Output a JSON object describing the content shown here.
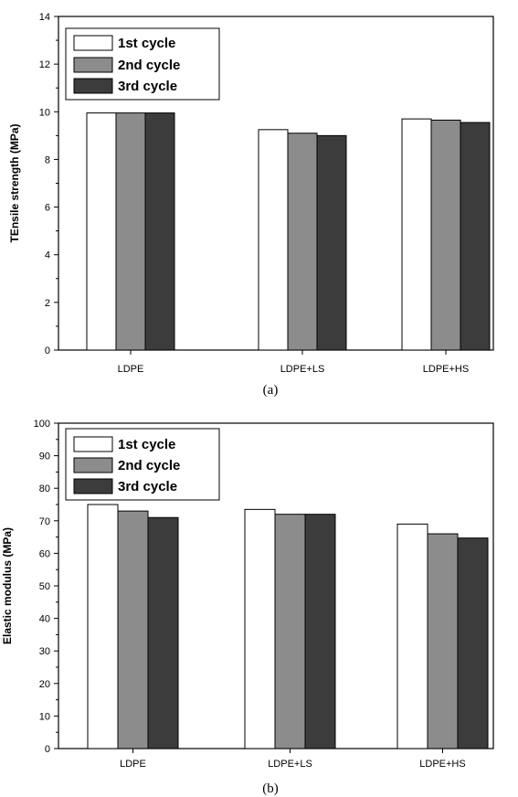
{
  "chart_data": [
    {
      "type": "bar",
      "caption": "(a)",
      "ylabel": "TEnsile strength (MPa)",
      "xlabel": "",
      "ylim": [
        0,
        14
      ],
      "yticks": [
        0,
        2,
        4,
        6,
        8,
        10,
        12,
        14
      ],
      "categories": [
        "LDPE",
        "LDPE+LS",
        "LDPE+HS"
      ],
      "series": [
        {
          "name": "1st cycle",
          "color": "#ffffff",
          "values": [
            9.95,
            9.25,
            9.7
          ]
        },
        {
          "name": "2nd cycle",
          "color": "#8c8c8c",
          "values": [
            9.95,
            9.1,
            9.65
          ]
        },
        {
          "name": "3rd cycle",
          "color": "#3c3c3c",
          "values": [
            9.95,
            9.0,
            9.55
          ]
        }
      ],
      "legend": "top-left",
      "grid": false
    },
    {
      "type": "bar",
      "caption": "(b)",
      "ylabel": "Elastic modulus (MPa)",
      "xlabel": "",
      "ylim": [
        0,
        100
      ],
      "yticks": [
        0,
        10,
        20,
        30,
        40,
        50,
        60,
        70,
        80,
        90,
        100
      ],
      "categories": [
        "LDPE",
        "LDPE+LS",
        "LDPE+HS"
      ],
      "series": [
        {
          "name": "1st cycle",
          "color": "#ffffff",
          "values": [
            75,
            73.5,
            69
          ]
        },
        {
          "name": "2nd cycle",
          "color": "#8c8c8c",
          "values": [
            73,
            72,
            66
          ]
        },
        {
          "name": "3rd cycle",
          "color": "#3c3c3c",
          "values": [
            71,
            72,
            64.7
          ]
        }
      ],
      "legend": "top-left",
      "grid": false
    }
  ]
}
